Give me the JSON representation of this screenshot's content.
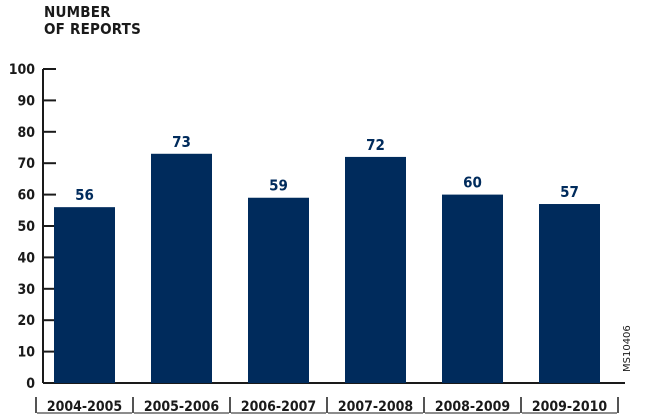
{
  "chart_data": {
    "type": "bar",
    "ylabel_lines": [
      "NUMBER",
      "OF REPORTS"
    ],
    "xlabel": "",
    "categories": [
      "2004-2005",
      "2005-2006",
      "2006-2007",
      "2007-2008",
      "2008-2009",
      "2009-2010"
    ],
    "values": [
      56,
      73,
      59,
      72,
      60,
      57
    ],
    "ylim": [
      0,
      100
    ],
    "yticks": [
      0,
      10,
      20,
      30,
      40,
      50,
      60,
      70,
      80,
      90,
      100
    ],
    "grid": false,
    "legend": "none",
    "data_labels": true,
    "colors": {
      "bar": "#002b5c",
      "text": "#1a1a1a",
      "axis": "#1a1a1a"
    }
  },
  "figure_code": "MS10406"
}
